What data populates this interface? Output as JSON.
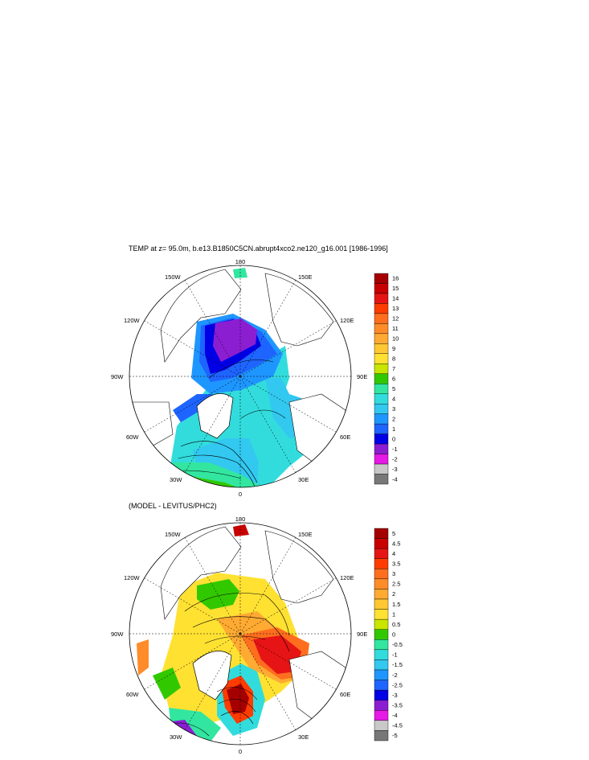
{
  "top_panel": {
    "title": "TEMP at z=  95.0m, b.e13.B1850C5CN.abrupt4xco2.ne120_g16.001 [1986-1996]",
    "lon_labels": {
      "north": "180",
      "south": "0",
      "east": "90E",
      "west": "90W",
      "ne": "150E",
      "nw": "150W",
      "e_up": "120E",
      "w_up": "120W",
      "e_low": "60E",
      "w_low": "60W",
      "se": "30E",
      "sw": "30W"
    },
    "colorbar": {
      "labels": [
        "16",
        "15",
        "14",
        "13",
        "12",
        "11",
        "10",
        "9",
        "8",
        "7",
        "6",
        "5",
        "4",
        "3",
        "2",
        "1",
        "0",
        "-1",
        "-2",
        "-3",
        "-4"
      ],
      "colors": [
        "#a50000",
        "#c80000",
        "#e61414",
        "#ff3c00",
        "#ff6e1e",
        "#ff8c28",
        "#ffaa32",
        "#ffc832",
        "#ffe132",
        "#c8e600",
        "#32c800",
        "#32e6a0",
        "#32dcdc",
        "#32c8f0",
        "#1e96ff",
        "#1e64ff",
        "#0000e6",
        "#8c1ed2",
        "#e619e6",
        "#c8c8c8",
        "#787878"
      ]
    }
  },
  "bottom_panel": {
    "title": "(MODEL - LEVITUS/PHC2)",
    "lon_labels": {
      "north": "180",
      "south": "0",
      "east": "90E",
      "west": "90W",
      "ne": "150E",
      "nw": "150W",
      "e_up": "120E",
      "w_up": "120W",
      "e_low": "60E",
      "w_low": "60W",
      "se": "30E",
      "sw": "30W"
    },
    "colorbar": {
      "labels": [
        "5",
        "4.5",
        "4",
        "3.5",
        "3",
        "2.5",
        "2",
        "1.5",
        "1",
        "0.5",
        "0",
        "-0.5",
        "-1",
        "-1.5",
        "-2",
        "-2.5",
        "-3",
        "-3.5",
        "-4",
        "-4.5",
        "-5"
      ],
      "colors": [
        "#a50000",
        "#c80000",
        "#e61414",
        "#ff3c00",
        "#ff6e1e",
        "#ff8c28",
        "#ffaa32",
        "#ffc832",
        "#ffe132",
        "#c8e600",
        "#32c800",
        "#32e6a0",
        "#32dcdc",
        "#32c8f0",
        "#1e96ff",
        "#1e64ff",
        "#0000e6",
        "#8c1ed2",
        "#e619e6",
        "#c8c8c8",
        "#787878"
      ]
    }
  }
}
